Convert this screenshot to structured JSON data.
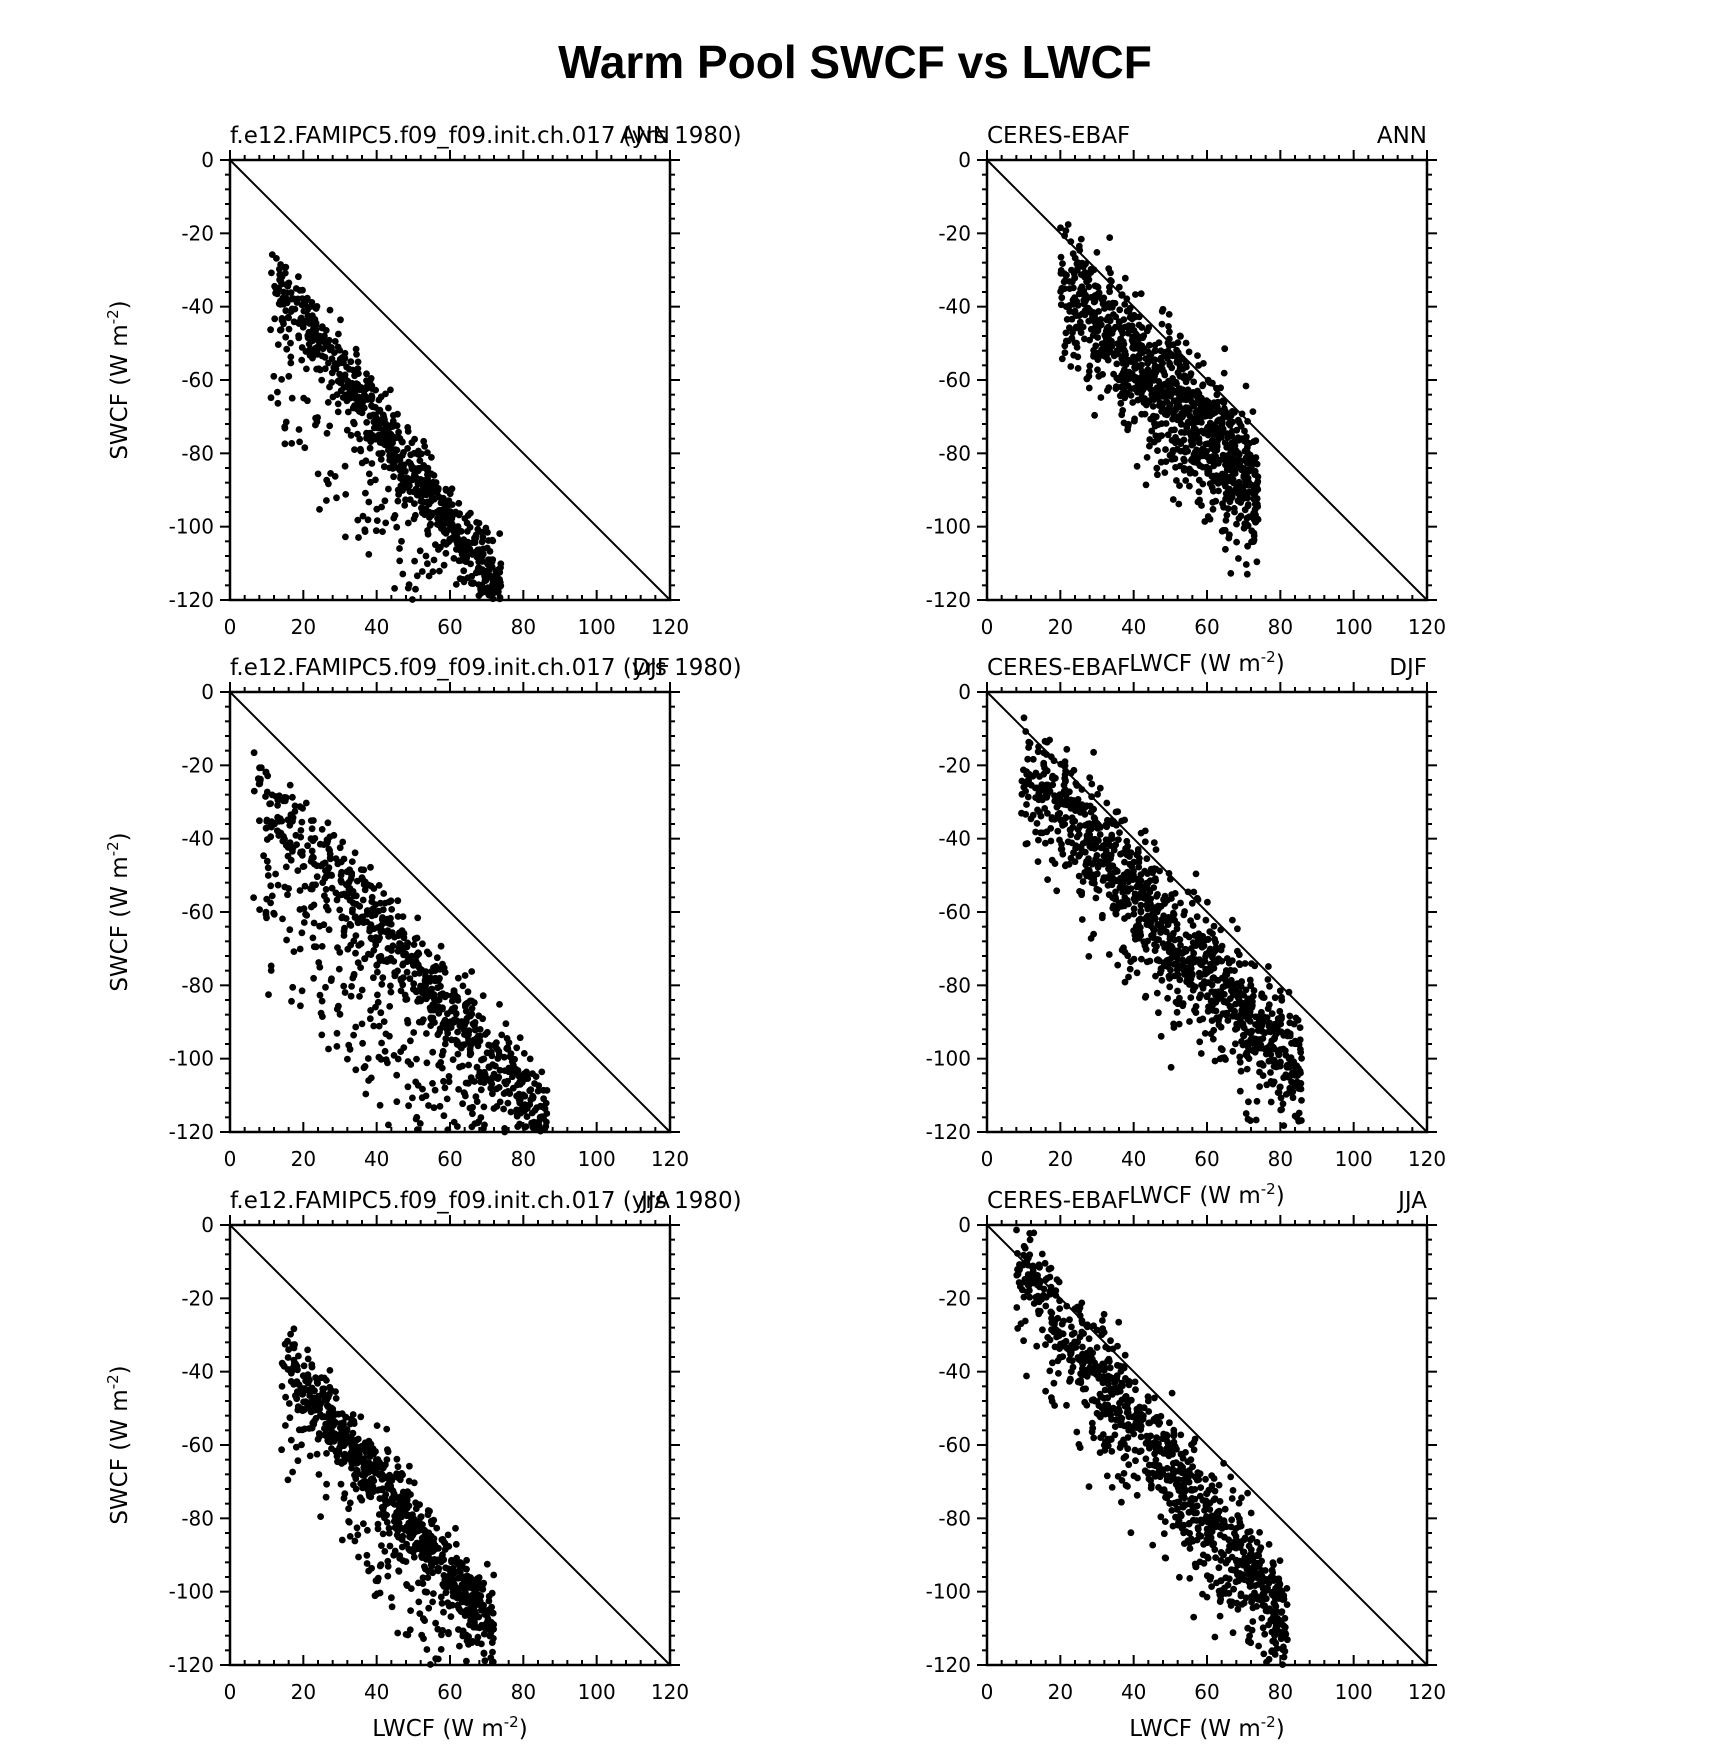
{
  "title": "Warm Pool SWCF vs LWCF",
  "chart_data": [
    {
      "type": "scatter",
      "left_label": "f.e12.FAMIPC5.f09_f09.init.ch.017 (yrs 1980)",
      "right_label": "ANN",
      "xlabel": "",
      "ylabel": "SWCF (W m-2)",
      "xlim": [
        0,
        120
      ],
      "ylim": [
        -120,
        0
      ],
      "xticks": [
        "0",
        "20",
        "40",
        "60",
        "80",
        "100",
        "120"
      ],
      "yticks": [
        "0",
        "-20",
        "-40",
        "-60",
        "-80",
        "-100",
        "-120"
      ],
      "reference_line": "1:1 (SWCF = -LWCF)",
      "cloud": {
        "n": 900,
        "x_range": [
          11,
          74
        ],
        "slope": -1.38,
        "intercept": -16,
        "spread": 5,
        "below_fraction": 0.22,
        "below_extra": 40
      }
    },
    {
      "type": "scatter",
      "left_label": "CERES-EBAF",
      "right_label": "ANN",
      "xlabel": "LWCF (W m-2)",
      "ylabel": "",
      "xlim": [
        0,
        120
      ],
      "ylim": [
        -120,
        0
      ],
      "xticks": [
        "0",
        "20",
        "40",
        "60",
        "80",
        "100",
        "120"
      ],
      "yticks": [
        "0",
        "-20",
        "-40",
        "-60",
        "-80",
        "-100",
        "-120"
      ],
      "reference_line": "1:1 (SWCF = -LWCF)",
      "cloud": {
        "n": 1100,
        "x_range": [
          20,
          74
        ],
        "slope": -1.05,
        "intercept": -12,
        "spread": 9,
        "below_fraction": 0.15,
        "below_extra": 15
      }
    },
    {
      "type": "scatter",
      "left_label": "f.e12.FAMIPC5.f09_f09.init.ch.017 (yrs 1980)",
      "right_label": "DJF",
      "xlabel": "",
      "ylabel": "SWCF (W m-2)",
      "xlim": [
        0,
        120
      ],
      "ylim": [
        -120,
        0
      ],
      "xticks": [
        "0",
        "20",
        "40",
        "60",
        "80",
        "100",
        "120"
      ],
      "yticks": [
        "0",
        "-20",
        "-40",
        "-60",
        "-80",
        "-100",
        "-120"
      ],
      "reference_line": "1:1 (SWCF = -LWCF)",
      "cloud": {
        "n": 1000,
        "x_range": [
          6,
          87
        ],
        "slope": -1.16,
        "intercept": -17,
        "spread": 6,
        "below_fraction": 0.4,
        "below_extra": 45
      }
    },
    {
      "type": "scatter",
      "left_label": "CERES-EBAF",
      "right_label": "DJF",
      "xlabel": "LWCF (W m-2)",
      "ylabel": "",
      "xlim": [
        0,
        120
      ],
      "ylim": [
        -120,
        0
      ],
      "xticks": [
        "0",
        "20",
        "40",
        "60",
        "80",
        "100",
        "120"
      ],
      "yticks": [
        "0",
        "-20",
        "-40",
        "-60",
        "-80",
        "-100",
        "-120"
      ],
      "reference_line": "1:1 (SWCF = -LWCF)",
      "cloud": {
        "n": 1100,
        "x_range": [
          9,
          86
        ],
        "slope": -1.1,
        "intercept": -10,
        "spread": 8,
        "below_fraction": 0.12,
        "below_extra": 20
      }
    },
    {
      "type": "scatter",
      "left_label": "f.e12.FAMIPC5.f09_f09.init.ch.017 (yrs 1980)",
      "right_label": "JJA",
      "xlabel": "LWCF (W m-2)",
      "ylabel": "SWCF (W m-2)",
      "xlim": [
        0,
        120
      ],
      "ylim": [
        -120,
        0
      ],
      "xticks": [
        "0",
        "20",
        "40",
        "60",
        "80",
        "100",
        "120"
      ],
      "yticks": [
        "0",
        "-20",
        "-40",
        "-60",
        "-80",
        "-100",
        "-120"
      ],
      "reference_line": "1:1 (SWCF = -LWCF)",
      "cloud": {
        "n": 900,
        "x_range": [
          14,
          72
        ],
        "slope": -1.3,
        "intercept": -17,
        "spread": 5,
        "below_fraction": 0.22,
        "below_extra": 35
      }
    },
    {
      "type": "scatter",
      "left_label": "CERES-EBAF",
      "right_label": "JJA",
      "xlabel": "LWCF (W m-2)",
      "ylabel": "",
      "xlim": [
        0,
        120
      ],
      "ylim": [
        -120,
        0
      ],
      "xticks": [
        "0",
        "20",
        "40",
        "60",
        "80",
        "100",
        "120"
      ],
      "yticks": [
        "0",
        "-20",
        "-40",
        "-60",
        "-80",
        "-100",
        "-120"
      ],
      "reference_line": "1:1 (SWCF = -LWCF)",
      "cloud": {
        "n": 1000,
        "x_range": [
          8,
          82
        ],
        "slope": -1.3,
        "intercept": -1,
        "spread": 7,
        "below_fraction": 0.2,
        "below_extra": 22
      }
    }
  ]
}
